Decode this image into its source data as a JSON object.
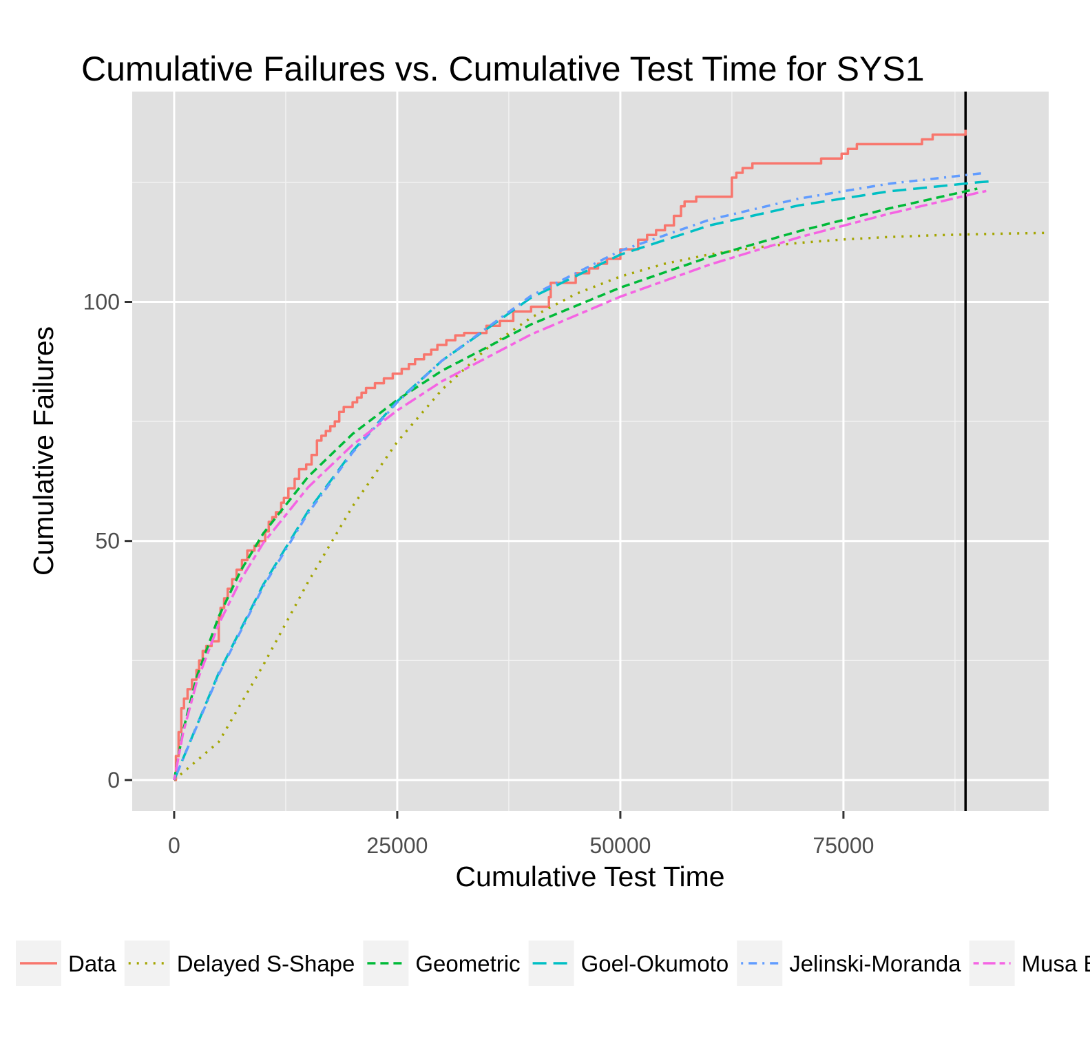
{
  "chart_data": {
    "type": "line",
    "title": "Cumulative Failures vs. Cumulative Test Time for SYS1",
    "xlabel": "Cumulative Test Time",
    "ylabel": "Cumulative Failures",
    "xlim": [
      -4700,
      98000
    ],
    "ylim": [
      -6.5,
      144
    ],
    "x_ticks": [
      0,
      25000,
      50000,
      75000
    ],
    "x_tick_labels": [
      "0",
      "25000",
      "50000",
      "75000"
    ],
    "y_ticks": [
      0,
      50,
      100
    ],
    "y_tick_labels": [
      "0",
      "50",
      "100"
    ],
    "grid": true,
    "panel_background": "#e0e0e0",
    "legend_position": "bottom",
    "vertical_reference_line": {
      "x": 88682,
      "color": "#000000"
    },
    "series": [
      {
        "name": "Data",
        "color": "#f8766d",
        "dash": "solid",
        "step": true,
        "x": [
          0,
          200,
          500,
          800,
          1100,
          1500,
          2000,
          2500,
          2800,
          3200,
          3600,
          4200,
          5000,
          5200,
          5600,
          6000,
          6500,
          7000,
          7600,
          8200,
          9000,
          9500,
          10200,
          10600,
          11000,
          11400,
          12000,
          12300,
          12800,
          13500,
          14000,
          14800,
          15400,
          16000,
          16500,
          17000,
          17500,
          18000,
          18500,
          19000,
          20000,
          20500,
          21000,
          21500,
          22500,
          23500,
          24500,
          25500,
          26300,
          27000,
          28000,
          28800,
          29500,
          30500,
          31500,
          32500,
          35000,
          36500,
          38000,
          40000,
          42000,
          42200,
          45000,
          46500,
          47500,
          48500,
          50000,
          52000,
          53000,
          54000,
          55000,
          56000,
          56800,
          57200,
          58500,
          62500,
          63000,
          63700,
          64800,
          72500,
          74800,
          75500,
          76500,
          83800,
          85000,
          88682
        ],
        "y": [
          0,
          5,
          10,
          15,
          17,
          19,
          21,
          23,
          25,
          27,
          28,
          29,
          34,
          36,
          38,
          40,
          42,
          44,
          46,
          48,
          49,
          50,
          52,
          54,
          55,
          56,
          58,
          59,
          61,
          63,
          65,
          66,
          68,
          71,
          72,
          73,
          74,
          75,
          77,
          78,
          79,
          80,
          81,
          82,
          83,
          84,
          85,
          86,
          87,
          88,
          89,
          90,
          91,
          92,
          93,
          93.5,
          95,
          96,
          98,
          99,
          101,
          104,
          106,
          107,
          108,
          109,
          111,
          113,
          114,
          115,
          116,
          118,
          120,
          121,
          122,
          126,
          127,
          128,
          129,
          130,
          131,
          132,
          133,
          134,
          135,
          136
        ]
      },
      {
        "name": "Delayed S-Shape",
        "color": "#a3a500",
        "dash": "dotted",
        "x": [
          0,
          5000,
          10000,
          15000,
          20000,
          25000,
          30000,
          35000,
          40000,
          45000,
          50000,
          55000,
          60000,
          65000,
          70000,
          75000,
          80000,
          85000,
          90000,
          95000,
          98000
        ],
        "y": [
          0,
          7.97,
          24.08,
          41.39,
          57.26,
          70.72,
          81.63,
          90.18,
          96.73,
          101.66,
          105.32,
          108,
          109.94,
          111.35,
          112.35,
          113.07,
          113.57,
          113.93,
          114.18,
          114.36,
          114.44
        ]
      },
      {
        "name": "Geometric",
        "color": "#00ba38",
        "dash": "dashed",
        "x": [
          0,
          1000,
          2500,
          5000,
          7500,
          10000,
          15000,
          20000,
          25000,
          30000,
          40000,
          50000,
          60000,
          70000,
          80000,
          90000
        ],
        "y": [
          0,
          10.3,
          21.4,
          34.2,
          43.9,
          51.6,
          63.4,
          72.4,
          79.5,
          85.6,
          95.3,
          103,
          109.4,
          114.8,
          119.5,
          123.7
        ]
      },
      {
        "name": "Goel-Okumoto",
        "color": "#00bfc4",
        "dash": "longdash",
        "x": [
          0,
          5000,
          10000,
          15000,
          20000,
          25000,
          30000,
          40000,
          50000,
          60000,
          70000,
          80000,
          90000,
          92000
        ],
        "y": [
          0,
          22.4,
          40.9,
          56.2,
          68.8,
          79.2,
          87.7,
          100.9,
          109.9,
          116,
          120.2,
          123.1,
          125,
          125.3
        ]
      },
      {
        "name": "Jelinski-Moranda",
        "color": "#619cff",
        "dash": "dotdash",
        "x": [
          0,
          5000,
          10000,
          15000,
          20000,
          25000,
          30000,
          40000,
          50000,
          60000,
          70000,
          80000,
          90000,
          91000
        ],
        "y": [
          0,
          22.1,
          40.5,
          55.8,
          68.5,
          79,
          87.7,
          101.3,
          110.7,
          117.2,
          121.6,
          124.7,
          126.8,
          127
        ]
      },
      {
        "name": "Musa Basic",
        "color": "#f564e3",
        "dash": "twodash",
        "x": [
          0,
          1000,
          2500,
          5000,
          7500,
          10000,
          15000,
          20000,
          25000,
          30000,
          40000,
          50000,
          60000,
          70000,
          80000,
          90000,
          91000
        ],
        "y": [
          0,
          9.8,
          20.3,
          32.6,
          42,
          49.6,
          61.2,
          70.1,
          77.3,
          83.4,
          93.2,
          101.1,
          107.8,
          113.5,
          118.4,
          122.8,
          123.2
        ]
      }
    ]
  }
}
